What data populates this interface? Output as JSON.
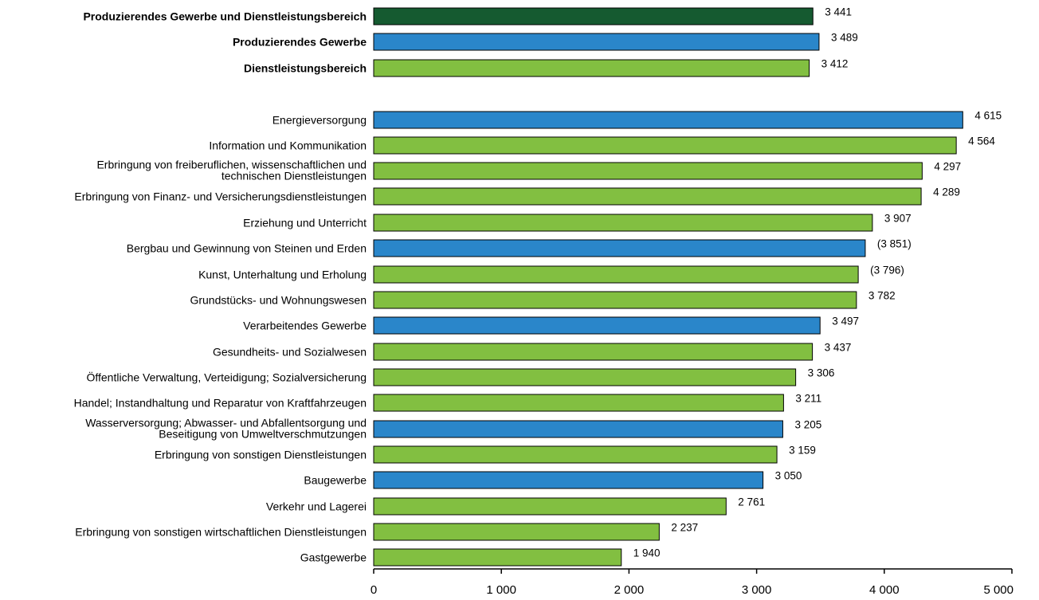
{
  "chart_data": {
    "type": "bar",
    "orientation": "horizontal",
    "xlim": [
      0,
      5000
    ],
    "x_ticks": [
      0,
      1000,
      2000,
      3000,
      4000,
      5000
    ],
    "x_tick_labels": [
      "0",
      "1 000",
      "2 000",
      "3 000",
      "4 000",
      "5 000"
    ],
    "grid": false,
    "colors": {
      "total": "#155a30",
      "produzierendes": "#2a86ca",
      "dienstleistung": "#82bf41"
    },
    "bars": [
      {
        "label": [
          "Produzierendes Gewerbe und Dienstleistungsbereich"
        ],
        "value": 3441,
        "value_label": "3 441",
        "group": "total",
        "bold": true
      },
      {
        "label": [
          "Produzierendes Gewerbe"
        ],
        "value": 3489,
        "value_label": "3 489",
        "group": "produzierendes",
        "bold": true
      },
      {
        "label": [
          "Dienstleistungsbereich"
        ],
        "value": 3412,
        "value_label": "3 412",
        "group": "dienstleistung",
        "bold": true
      },
      {
        "label": [
          "Energieversorgung"
        ],
        "value": 4615,
        "value_label": "4 615",
        "group": "produzierendes",
        "bold": false
      },
      {
        "label": [
          "Information und Kommunikation"
        ],
        "value": 4564,
        "value_label": "4 564",
        "group": "dienstleistung",
        "bold": false
      },
      {
        "label": [
          "Erbringung von freiberuflichen, wissenschaftlichen und",
          "technischen Dienstleistungen"
        ],
        "value": 4297,
        "value_label": "4 297",
        "group": "dienstleistung",
        "bold": false
      },
      {
        "label": [
          "Erbringung von Finanz- und Versicherungsdienstleistungen"
        ],
        "value": 4289,
        "value_label": "4 289",
        "group": "dienstleistung",
        "bold": false
      },
      {
        "label": [
          "Erziehung und Unterricht"
        ],
        "value": 3907,
        "value_label": "3 907",
        "group": "dienstleistung",
        "bold": false
      },
      {
        "label": [
          "Bergbau und Gewinnung von Steinen und Erden"
        ],
        "value": 3851,
        "value_label": "(3 851)",
        "group": "produzierendes",
        "bold": false
      },
      {
        "label": [
          "Kunst, Unterhaltung und Erholung"
        ],
        "value": 3796,
        "value_label": "(3 796)",
        "group": "dienstleistung",
        "bold": false
      },
      {
        "label": [
          "Grundstücks- und Wohnungswesen"
        ],
        "value": 3782,
        "value_label": "3 782",
        "group": "dienstleistung",
        "bold": false
      },
      {
        "label": [
          "Verarbeitendes Gewerbe"
        ],
        "value": 3497,
        "value_label": "3 497",
        "group": "produzierendes",
        "bold": false
      },
      {
        "label": [
          "Gesundheits- und Sozialwesen"
        ],
        "value": 3437,
        "value_label": "3 437",
        "group": "dienstleistung",
        "bold": false
      },
      {
        "label": [
          "Öffentliche Verwaltung, Verteidigung; Sozialversicherung"
        ],
        "value": 3306,
        "value_label": "3 306",
        "group": "dienstleistung",
        "bold": false
      },
      {
        "label": [
          "Handel; Instandhaltung und Reparatur von Kraftfahrzeugen"
        ],
        "value": 3211,
        "value_label": "3 211",
        "group": "dienstleistung",
        "bold": false
      },
      {
        "label": [
          "Wasserversorgung; Abwasser- und Abfallentsorgung und",
          "Beseitigung von Umweltverschmutzungen"
        ],
        "value": 3205,
        "value_label": "3 205",
        "group": "produzierendes",
        "bold": false
      },
      {
        "label": [
          "Erbringung von sonstigen Dienstleistungen"
        ],
        "value": 3159,
        "value_label": "3 159",
        "group": "dienstleistung",
        "bold": false
      },
      {
        "label": [
          "Baugewerbe"
        ],
        "value": 3050,
        "value_label": "3 050",
        "group": "produzierendes",
        "bold": false
      },
      {
        "label": [
          "Verkehr und Lagerei"
        ],
        "value": 2761,
        "value_label": "2 761",
        "group": "dienstleistung",
        "bold": false
      },
      {
        "label": [
          "Erbringung von sonstigen wirtschaftlichen Dienstleistungen"
        ],
        "value": 2237,
        "value_label": "2 237",
        "group": "dienstleistung",
        "bold": false
      },
      {
        "label": [
          "Gastgewerbe"
        ],
        "value": 1940,
        "value_label": "1 940",
        "group": "dienstleistung",
        "bold": false
      }
    ]
  }
}
